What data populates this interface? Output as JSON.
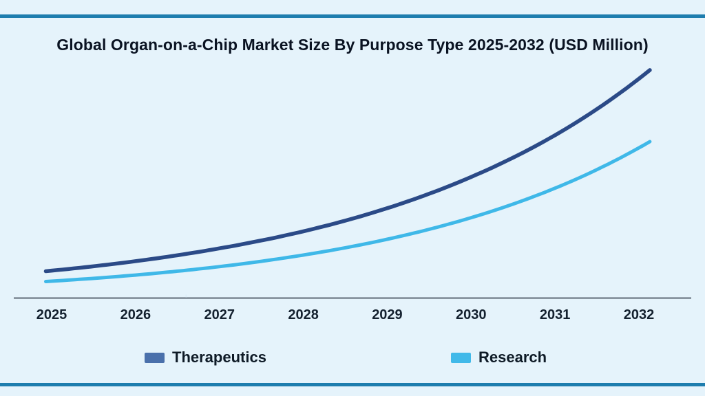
{
  "page": {
    "background_color": "#e5f3fb",
    "border_color": "#1e7dae"
  },
  "chart_data": {
    "type": "line",
    "title": "Global Organ-on-a-Chip Market Size By Purpose Type 2025-2032 (USD Million)",
    "xlabel": "",
    "ylabel": "",
    "categories": [
      "2025",
      "2026",
      "2027",
      "2028",
      "2029",
      "2030",
      "2031",
      "2032"
    ],
    "series": [
      {
        "name": "Therapeutics",
        "line_color": "#2b4a87",
        "legend_swatch_color": "#4a70ab",
        "values": [
          156,
          210,
          283,
          380,
          512,
          690,
          928,
          1250
        ]
      },
      {
        "name": "Research",
        "line_color": "#3fb8e8",
        "legend_swatch_color": "#41b9e9",
        "values": [
          96,
          131,
          179,
          245,
          335,
          458,
          626,
          856
        ]
      }
    ],
    "ylim": [
      0,
      1400
    ],
    "grid": false,
    "y_axis_ticks": [],
    "legend_position": "bottom",
    "axis_color": "#26313e",
    "text_color": "#0a1322"
  }
}
